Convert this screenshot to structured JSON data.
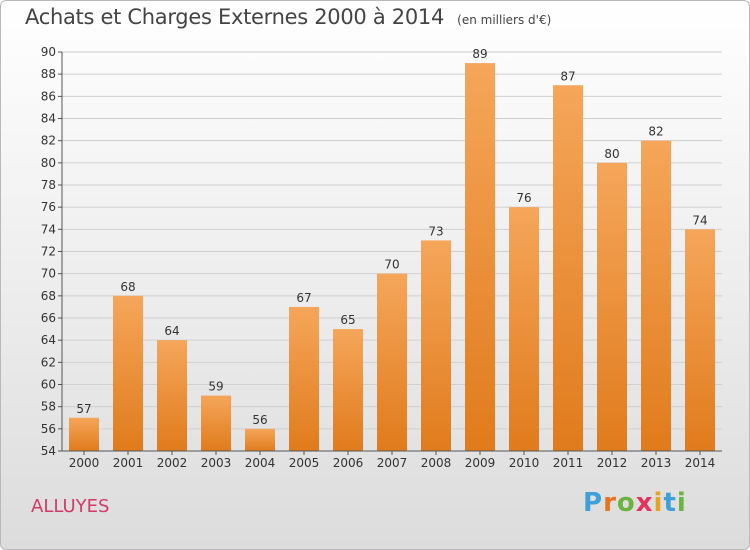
{
  "header": {
    "title": "Achats et Charges Externes 2000 à 2014",
    "unit": "(en milliers d'€)"
  },
  "commune": "ALLUYES",
  "logo": {
    "letters": [
      "P",
      "r",
      "o",
      "x",
      "i",
      "t",
      "i"
    ],
    "colors": [
      "#3f9fd9",
      "#e8721f",
      "#6cb33f",
      "#e4325c",
      "#e8a21f",
      "#3f9fd9",
      "#6cb33f"
    ]
  },
  "colors": {
    "bar_top": "#f5a65a",
    "bar_bottom": "#e07b1c",
    "grid": "#cfcfcf"
  },
  "chart_data": {
    "type": "bar",
    "title": "Achats et Charges Externes 2000 à 2014",
    "subtitle": "(en milliers d'€)",
    "categories": [
      "2000",
      "2001",
      "2002",
      "2003",
      "2004",
      "2005",
      "2006",
      "2007",
      "2008",
      "2009",
      "2010",
      "2011",
      "2012",
      "2013",
      "2014"
    ],
    "values": [
      57,
      68,
      64,
      59,
      56,
      67,
      65,
      70,
      73,
      89,
      76,
      87,
      80,
      82,
      74
    ],
    "ylim": [
      54,
      90
    ],
    "yticks": [
      54,
      56,
      58,
      60,
      62,
      64,
      66,
      68,
      70,
      72,
      74,
      76,
      78,
      80,
      82,
      84,
      86,
      88,
      90
    ],
    "grid": true,
    "data_labels": true
  }
}
